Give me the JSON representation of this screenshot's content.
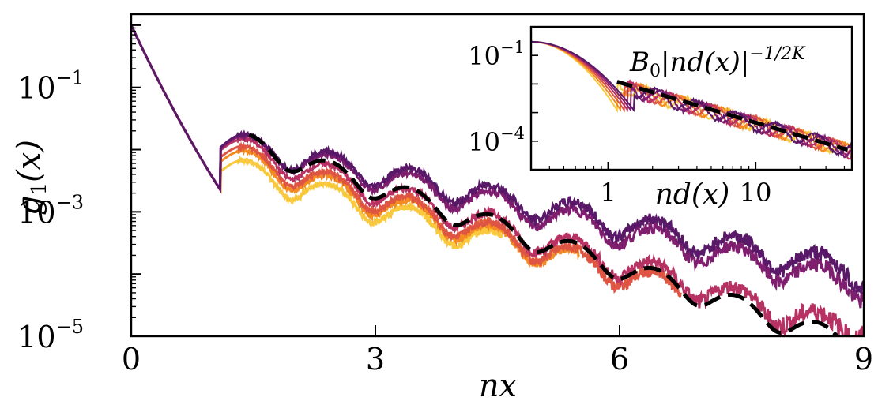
{
  "chart_data": [
    {
      "type": "line",
      "scale_y": "log",
      "xlabel_html": "nx",
      "ylabel_base": "g",
      "ylabel_sub": "1",
      "ylabel_tail": "(x)",
      "xlim": [
        0,
        9
      ],
      "ylim": [
        1e-05,
        1.5
      ],
      "xticks": [
        {
          "value": 0,
          "label": "0"
        },
        {
          "value": 3,
          "label": "3"
        },
        {
          "value": 6,
          "label": "6"
        },
        {
          "value": 9,
          "label": "9"
        }
      ],
      "yticks": [
        {
          "value": 0.1,
          "base": "10",
          "exp": "−1"
        },
        {
          "value": 0.001,
          "base": "10",
          "exp": "−3"
        },
        {
          "value": 1e-05,
          "base": "10",
          "exp": "−5"
        }
      ],
      "series": [
        {
          "name": "c1",
          "color": "#5a1868",
          "xmax": 9.0,
          "floor": 0.00013,
          "peak1": 0.016
        },
        {
          "name": "c2",
          "color": "#7f1e6f",
          "xmax": 9.0,
          "floor": 8e-05,
          "peak1": 0.015
        },
        {
          "name": "c3",
          "color": "#b73262",
          "xmax": 9.0,
          "floor": 1.2e-05,
          "peak1": 0.013
        },
        {
          "name": "c4",
          "color": "#df5543",
          "xmax": 6.75,
          "floor": 8e-06,
          "peak1": 0.01
        },
        {
          "name": "c5",
          "color": "#f38a22",
          "xmax": 5.5,
          "floor": 8e-06,
          "peak1": 0.0085
        },
        {
          "name": "c6",
          "color": "#f9c93d",
          "xmax": 4.55,
          "floor": 8e-06,
          "peak1": 0.006
        }
      ],
      "fit": {
        "name": "fit",
        "style": "dashed",
        "color": "#000000",
        "xmin": 1.45,
        "xmax": 9.0
      }
    },
    {
      "type": "line",
      "scale_x": "log",
      "scale_y": "log",
      "position": "top-right",
      "xlabel": "nd(x)",
      "annotation_prefix": "B",
      "annotation_sub": "0",
      "annotation_body": "|nd(x)|",
      "annotation_exp": "−1/2K",
      "xlim": [
        0.3,
        45
      ],
      "ylim": [
        1e-05,
        1.0
      ],
      "xticks": [
        {
          "value": 1,
          "label": "1"
        },
        {
          "value": 10,
          "label": "10"
        }
      ],
      "yticks": [
        {
          "value": 0.1,
          "base": "10",
          "exp": "−1"
        },
        {
          "value": 0.0001,
          "base": "10",
          "exp": "−4"
        }
      ],
      "fit": {
        "color": "#000000",
        "style": "dashed",
        "xmin": 1.15,
        "xmax": 42,
        "y_at_xmin": 0.012,
        "y_at_xmax": 5e-05
      }
    }
  ]
}
